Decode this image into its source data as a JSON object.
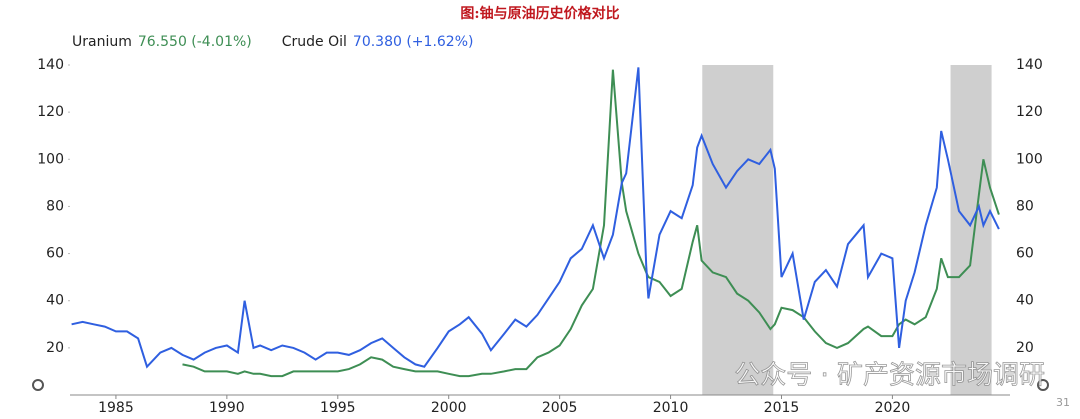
{
  "chart_data": {
    "type": "line",
    "title": "图:铀与原油历史价格对比",
    "watermark": "公众号 · 矿产资源市场调研",
    "page_number": "31",
    "x": [
      1983.0,
      1983.5,
      1984.0,
      1984.5,
      1985.0,
      1985.5,
      1986.0,
      1986.4,
      1987.0,
      1987.5,
      1988.0,
      1988.5,
      1989.0,
      1989.5,
      1990.0,
      1990.5,
      1990.8,
      1991.2,
      1991.5,
      1992.0,
      1992.5,
      1993.0,
      1993.5,
      1994.0,
      1994.5,
      1995.0,
      1995.5,
      1996.0,
      1996.5,
      1997.0,
      1997.5,
      1998.0,
      1998.5,
      1998.9,
      1999.5,
      2000.0,
      2000.5,
      2000.9,
      2001.5,
      2001.9,
      2002.5,
      2003.0,
      2003.5,
      2004.0,
      2004.5,
      2005.0,
      2005.5,
      2006.0,
      2006.5,
      2007.0,
      2007.4,
      2007.8,
      2008.0,
      2008.55,
      2008.9,
      2009.0,
      2009.5,
      2010.0,
      2010.5,
      2011.0,
      2011.2,
      2011.4,
      2011.9,
      2012.5,
      2013.0,
      2013.5,
      2014.0,
      2014.5,
      2014.7,
      2015.0,
      2015.5,
      2016.0,
      2016.5,
      2017.0,
      2017.5,
      2018.0,
      2018.7,
      2018.9,
      2019.5,
      2020.0,
      2020.3,
      2020.6,
      2021.0,
      2021.5,
      2022.0,
      2022.2,
      2022.5,
      2023.0,
      2023.5,
      2023.9,
      2024.1,
      2024.4,
      2024.8
    ],
    "series": [
      {
        "name": "Uranium",
        "last_label": "76.550 (-4.01%)",
        "color": "#3e8e54",
        "values": [
          null,
          null,
          null,
          null,
          null,
          null,
          null,
          null,
          null,
          null,
          13,
          12,
          10,
          10,
          10,
          9,
          10,
          9,
          9,
          8,
          8,
          10,
          10,
          10,
          10,
          10,
          11,
          13,
          16,
          15,
          12,
          11,
          10,
          10,
          10,
          9,
          8,
          8,
          9,
          9,
          10,
          11,
          11,
          16,
          18,
          21,
          28,
          38,
          45,
          72,
          138,
          90,
          78,
          60,
          52,
          50,
          48,
          42,
          45,
          65,
          72,
          57,
          52,
          50,
          43,
          40,
          35,
          28,
          30,
          37,
          36,
          33,
          27,
          22,
          20,
          22,
          28,
          29,
          25,
          25,
          30,
          32,
          30,
          33,
          45,
          58,
          50,
          50,
          55,
          85,
          100,
          88,
          76.55
        ]
      },
      {
        "name": "Crude Oil",
        "last_label": "70.380 (+1.62%)",
        "color": "#2f5fe0",
        "values": [
          30,
          31,
          30,
          29,
          27,
          27,
          24,
          12,
          18,
          20,
          17,
          15,
          18,
          20,
          21,
          18,
          40,
          20,
          21,
          19,
          21,
          20,
          18,
          15,
          18,
          18,
          17,
          19,
          22,
          24,
          20,
          16,
          13,
          12,
          20,
          27,
          30,
          33,
          26,
          19,
          26,
          32,
          29,
          34,
          41,
          48,
          58,
          62,
          72,
          58,
          68,
          90,
          94,
          139,
          55,
          41,
          68,
          78,
          75,
          89,
          105,
          110,
          98,
          88,
          95,
          100,
          98,
          104,
          96,
          50,
          60,
          32,
          48,
          53,
          46,
          64,
          72,
          50,
          60,
          58,
          20,
          40,
          52,
          72,
          88,
          112,
          100,
          78,
          72,
          80,
          72,
          78,
          70.38
        ]
      }
    ],
    "shaded_ranges": [
      [
        2011.43,
        2014.63
      ],
      [
        2022.62,
        2024.47
      ]
    ],
    "xlim": [
      1982.93,
      2025.3
    ],
    "xticks": [
      1985,
      1990,
      1995,
      2000,
      2005,
      2010,
      2015,
      2020
    ],
    "ylim": [
      0,
      140
    ],
    "yticks": [
      20,
      40,
      60,
      80,
      100,
      120,
      140
    ]
  }
}
